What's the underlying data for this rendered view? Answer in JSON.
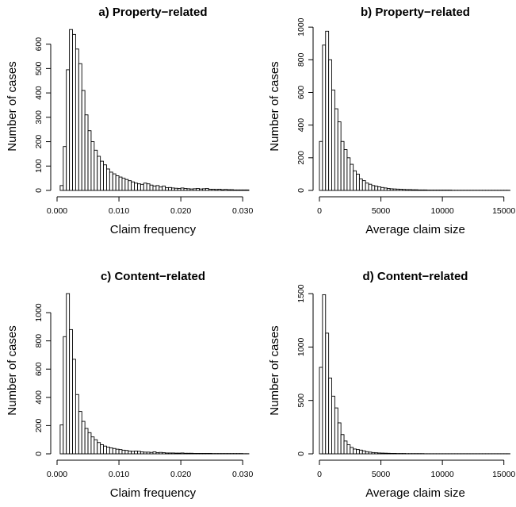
{
  "chart_data": [
    {
      "type": "bar",
      "title": "a) Property−related",
      "xlabel": "Claim frequency",
      "ylabel": "Number of cases",
      "xlim": [
        0,
        0.031
      ],
      "ylim": [
        0,
        690
      ],
      "xticks": [
        0.0,
        0.01,
        0.02,
        0.03
      ],
      "xtick_labels": [
        "0.000",
        "0.010",
        "0.020",
        "0.030"
      ],
      "yticks": [
        0,
        100,
        200,
        300,
        400,
        500,
        600
      ],
      "ytick_labels": [
        "0",
        "100",
        "200",
        "300",
        "400",
        "500",
        "600"
      ],
      "bin_start": 0.0005,
      "bin_width": 0.0005,
      "values": [
        20,
        180,
        495,
        660,
        640,
        580,
        520,
        410,
        310,
        245,
        200,
        165,
        140,
        120,
        105,
        88,
        75,
        68,
        60,
        55,
        50,
        45,
        40,
        35,
        30,
        27,
        25,
        30,
        27,
        22,
        18,
        20,
        14,
        18,
        11,
        12,
        10,
        9,
        8,
        10,
        8,
        7,
        6,
        7,
        8,
        6,
        7,
        8,
        5,
        5,
        4,
        5,
        3,
        4,
        3,
        3,
        2,
        2,
        2,
        2,
        2
      ]
    },
    {
      "type": "bar",
      "title": "b) Property−related",
      "xlabel": "Average claim size",
      "ylabel": "Number of cases",
      "xlim": [
        0,
        15600
      ],
      "ylim": [
        0,
        1030
      ],
      "xticks": [
        0,
        5000,
        10000,
        15000
      ],
      "xtick_labels": [
        "0",
        "5000",
        "10000",
        "15000"
      ],
      "yticks": [
        0,
        200,
        400,
        600,
        800,
        1000
      ],
      "ytick_labels": [
        "0",
        "200",
        "400",
        "600",
        "800",
        "1000"
      ],
      "bin_start": 0,
      "bin_width": 250,
      "values": [
        300,
        890,
        975,
        800,
        615,
        500,
        420,
        300,
        250,
        200,
        160,
        120,
        100,
        70,
        60,
        45,
        38,
        30,
        26,
        22,
        18,
        15,
        12,
        10,
        9,
        8,
        7,
        6,
        5,
        5,
        4,
        4,
        3,
        3,
        3,
        2,
        2,
        2,
        2,
        2,
        2,
        2,
        2,
        1,
        1,
        1,
        1,
        1,
        1,
        1,
        1,
        1,
        1,
        1,
        1,
        1,
        1,
        1,
        1,
        1,
        1,
        1
      ]
    },
    {
      "type": "bar",
      "title": "c) Content−related",
      "xlabel": "Claim frequency",
      "ylabel": "Number of cases",
      "xlim": [
        0,
        0.031
      ],
      "ylim": [
        0,
        1180
      ],
      "xticks": [
        0.0,
        0.01,
        0.02,
        0.03
      ],
      "xtick_labels": [
        "0.000",
        "0.010",
        "0.020",
        "0.030"
      ],
      "yticks": [
        0,
        200,
        400,
        600,
        800,
        1000
      ],
      "ytick_labels": [
        "0",
        "200",
        "400",
        "600",
        "800",
        "1000"
      ],
      "bin_start": 0.0005,
      "bin_width": 0.0005,
      "values": [
        205,
        830,
        1135,
        880,
        670,
        420,
        300,
        230,
        180,
        150,
        120,
        100,
        80,
        65,
        55,
        48,
        42,
        38,
        33,
        30,
        26,
        24,
        20,
        18,
        20,
        18,
        14,
        12,
        12,
        10,
        14,
        8,
        10,
        8,
        6,
        6,
        6,
        5,
        5,
        6,
        4,
        4,
        4,
        3,
        3,
        3,
        3,
        3,
        3,
        2,
        2,
        2,
        2,
        2,
        2,
        2,
        2,
        2,
        2,
        1,
        1
      ]
    },
    {
      "type": "bar",
      "title": "d) Content−related",
      "xlabel": "Average claim size",
      "ylabel": "Number of cases",
      "xlim": [
        0,
        15600
      ],
      "ylim": [
        0,
        1560
      ],
      "xticks": [
        0,
        5000,
        10000,
        15000
      ],
      "xtick_labels": [
        "0",
        "5000",
        "10000",
        "15000"
      ],
      "yticks": [
        0,
        500,
        1000,
        1500
      ],
      "ytick_labels": [
        "0",
        "500",
        "1000",
        "1500"
      ],
      "bin_start": 0,
      "bin_width": 250,
      "values": [
        810,
        1490,
        1130,
        710,
        540,
        430,
        290,
        180,
        120,
        85,
        60,
        45,
        40,
        35,
        28,
        20,
        16,
        12,
        10,
        8,
        7,
        6,
        5,
        4,
        4,
        3,
        3,
        3,
        2,
        2,
        2,
        2,
        2,
        2,
        1,
        1,
        1,
        1,
        1,
        1,
        1,
        1,
        1,
        1,
        1,
        1,
        1,
        1,
        1,
        1,
        1,
        1,
        1,
        1,
        1,
        1,
        1,
        1,
        1,
        1,
        1,
        1
      ]
    }
  ]
}
